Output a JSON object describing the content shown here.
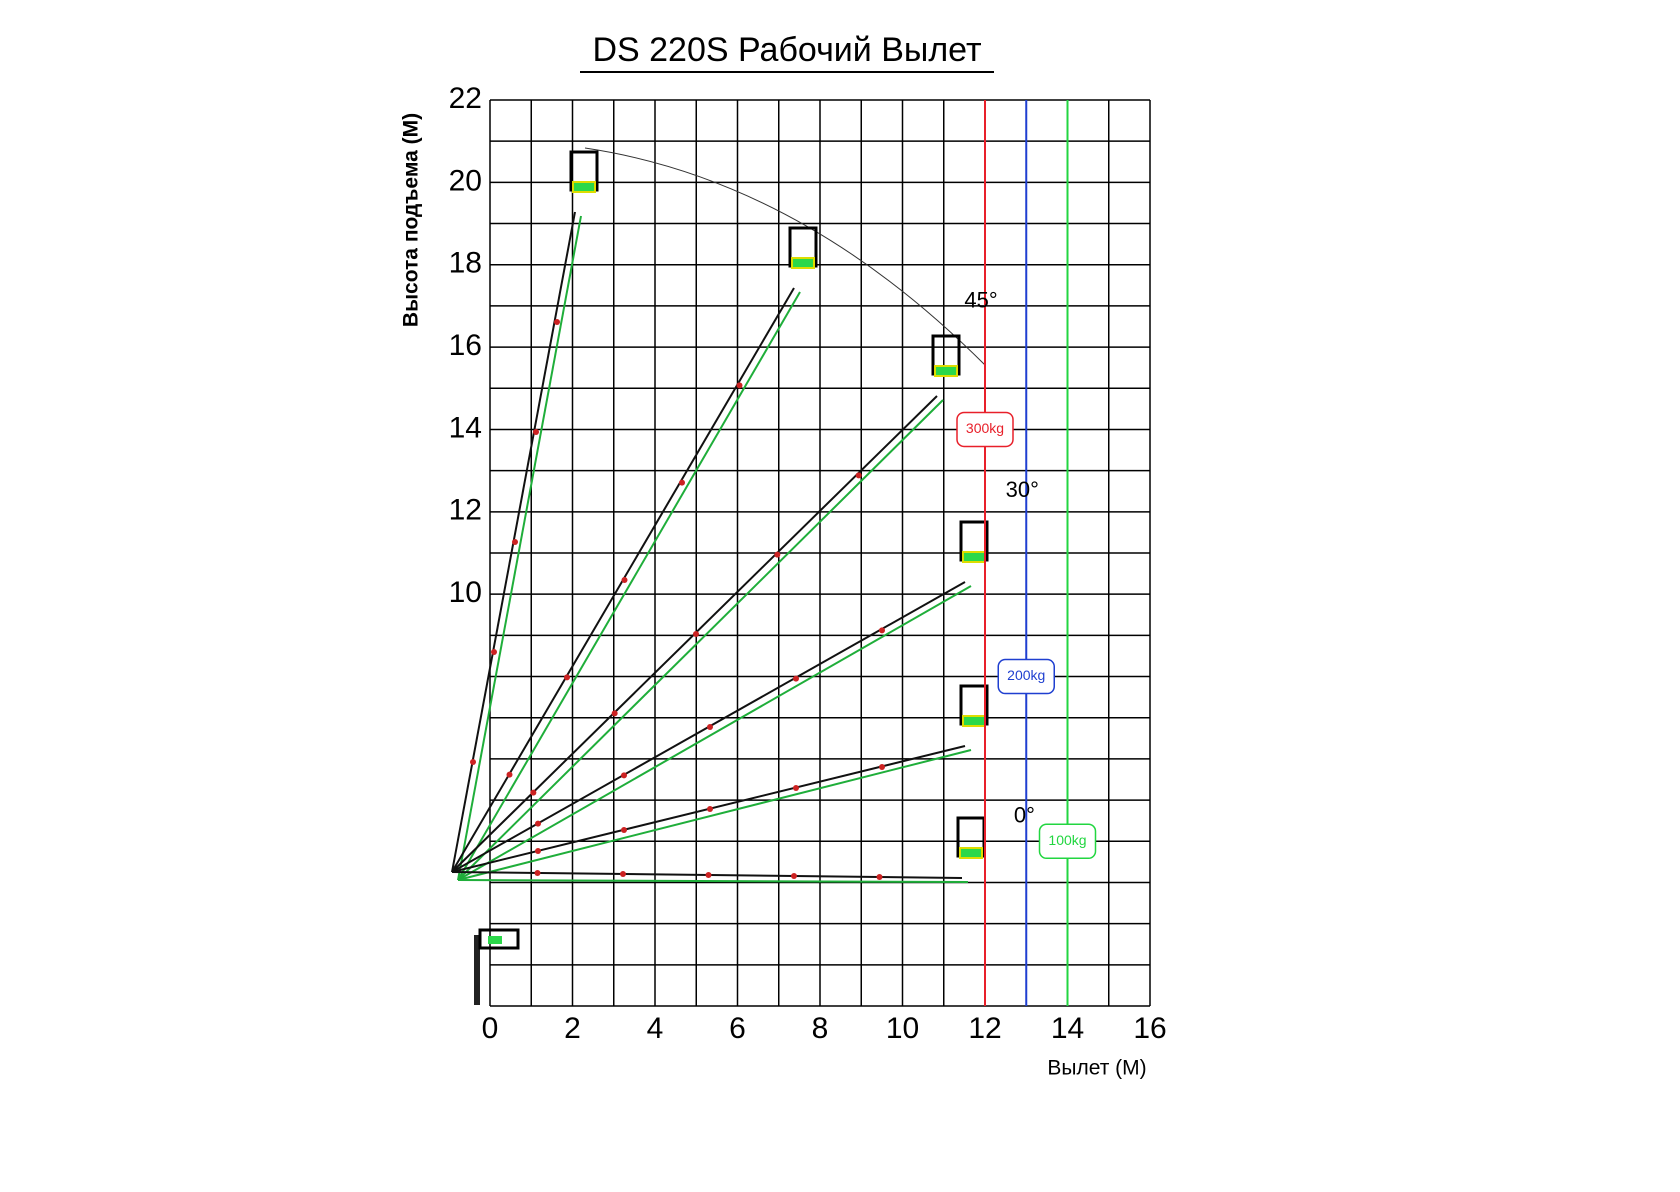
{
  "chart_data": {
    "type": "range",
    "title": "DS 220S Рабочий Вылет",
    "y_label": "Высота подъема (М)",
    "x_label": "Вылет (М)",
    "xlim": [
      0,
      16
    ],
    "ylim": [
      0,
      22
    ],
    "xticks": [
      0,
      2,
      4,
      6,
      8,
      10,
      12,
      14,
      16
    ],
    "yticks": [
      10,
      12,
      14,
      16,
      18,
      20,
      22
    ],
    "grid_spacing": 1,
    "limits": [
      {
        "x": 12,
        "label": "300kg",
        "label_y": 14,
        "color": "#e8202a"
      },
      {
        "x": 13,
        "label": "200kg",
        "label_y": 8,
        "color": "#1f3fd0"
      },
      {
        "x": 14,
        "label": "100kg",
        "label_y": 4,
        "color": "#22d640"
      }
    ],
    "angles": [
      {
        "label": "45°",
        "x": 11.5,
        "y": 17.1
      },
      {
        "label": "30°",
        "x": 12.5,
        "y": 12.5
      },
      {
        "label": "0°",
        "x": 12.7,
        "y": 4.6
      }
    ]
  }
}
